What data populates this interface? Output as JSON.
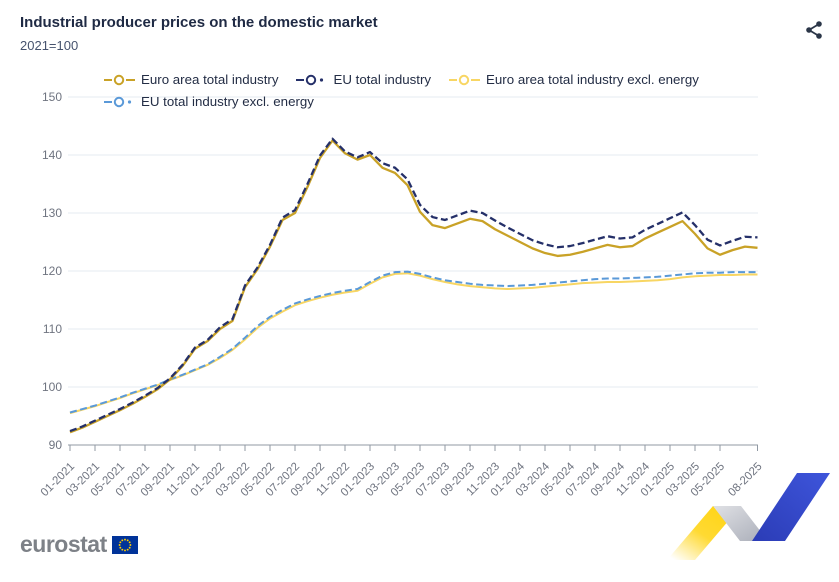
{
  "header": {
    "title": "Industrial producer prices on the domestic market",
    "subtitle": "2021=100"
  },
  "icons": {
    "share": "share-nodes-icon",
    "eu_flag": "eu-flag-icon"
  },
  "footer": {
    "logo_text": "eurostat"
  },
  "colors": {
    "title": "#1F2A44",
    "subtitle": "#46536E",
    "grid": "#E6EBF1",
    "axis": "#9099A3",
    "tick_text": "#6F7480",
    "legend_text": "#232D45",
    "share_icon": "#2B3648",
    "logo_gray": "#7D8187",
    "eu_flag_blue": "#003399",
    "eu_flag_stars": "#FFCC00",
    "ribbon_yellow": "#FFD30E",
    "ribbon_gray": "#B9BCC4",
    "ribbon_blue": "#3149CB"
  },
  "chart_data": {
    "type": "line",
    "title": "Industrial producer prices on the domestic market",
    "subtitle": "2021=100",
    "xlabel": "",
    "ylabel": "",
    "ylim": [
      90,
      150
    ],
    "y_ticks": [
      90,
      100,
      110,
      120,
      130,
      140,
      150
    ],
    "grid": true,
    "legend_position": "top",
    "x": [
      "01-2021",
      "02-2021",
      "03-2021",
      "04-2021",
      "05-2021",
      "06-2021",
      "07-2021",
      "08-2021",
      "09-2021",
      "10-2021",
      "11-2021",
      "12-2021",
      "01-2022",
      "02-2022",
      "03-2022",
      "04-2022",
      "05-2022",
      "06-2022",
      "07-2022",
      "08-2022",
      "09-2022",
      "10-2022",
      "11-2022",
      "12-2022",
      "01-2023",
      "02-2023",
      "03-2023",
      "04-2023",
      "05-2023",
      "06-2023",
      "07-2023",
      "08-2023",
      "09-2023",
      "10-2023",
      "11-2023",
      "12-2023",
      "01-2024",
      "02-2024",
      "03-2024",
      "04-2024",
      "05-2024",
      "06-2024",
      "07-2024",
      "08-2024",
      "09-2024",
      "10-2024",
      "11-2024",
      "12-2024",
      "01-2025",
      "02-2025",
      "03-2025",
      "04-2025",
      "05-2025",
      "06-2025",
      "07-2025",
      "08-2025"
    ],
    "x_tick_months": [
      0,
      2,
      4,
      6,
      8,
      10,
      12,
      14,
      16,
      18,
      20,
      22,
      24,
      26,
      28,
      30,
      32,
      34,
      36,
      38,
      40,
      42,
      44,
      46,
      48,
      50,
      52,
      55
    ],
    "x_tick_labels": [
      "01-2021",
      "03-2021",
      "05-2021",
      "07-2021",
      "09-2021",
      "11-2021",
      "01-2022",
      "03-2022",
      "05-2022",
      "07-2022",
      "09-2022",
      "11-2022",
      "01-2023",
      "03-2023",
      "05-2023",
      "07-2023",
      "09-2023",
      "11-2023",
      "01-2024",
      "03-2024",
      "05-2024",
      "07-2024",
      "09-2024",
      "11-2024",
      "01-2025",
      "03-2025",
      "05-2025",
      "08-2025"
    ],
    "series": [
      {
        "name": "Euro area total industry",
        "color": "#C9A227",
        "dash": "solid",
        "values": [
          92.2,
          93.0,
          94.0,
          95.0,
          96.0,
          97.1,
          98.3,
          99.6,
          101.3,
          103.6,
          106.6,
          107.9,
          110.0,
          111.4,
          117.2,
          120.3,
          124.2,
          128.8,
          130.0,
          134.5,
          139.5,
          142.5,
          140.3,
          139.2,
          140.0,
          137.8,
          136.9,
          134.8,
          130.2,
          127.9,
          127.4,
          128.2,
          129.0,
          128.6,
          127.2,
          126.1,
          125.0,
          123.9,
          123.1,
          122.6,
          122.8,
          123.3,
          123.9,
          124.5,
          124.1,
          124.3,
          125.6,
          126.6,
          127.6,
          128.6,
          126.4,
          123.9,
          122.8,
          123.6,
          124.2,
          124.0
        ]
      },
      {
        "name": "EU total industry",
        "color": "#253069",
        "dash": "dashed",
        "values": [
          92.4,
          93.2,
          94.2,
          95.2,
          96.2,
          97.3,
          98.5,
          99.8,
          101.5,
          103.8,
          106.8,
          108.1,
          110.3,
          111.7,
          117.5,
          120.6,
          124.5,
          129.2,
          130.5,
          135.0,
          139.9,
          142.8,
          140.6,
          139.6,
          140.5,
          138.6,
          137.8,
          135.8,
          131.4,
          129.3,
          128.8,
          129.6,
          130.4,
          130.0,
          128.7,
          127.5,
          126.4,
          125.3,
          124.6,
          124.1,
          124.3,
          124.8,
          125.4,
          126.0,
          125.6,
          125.8,
          127.1,
          128.1,
          129.1,
          130.1,
          127.9,
          125.4,
          124.4,
          125.2,
          125.9,
          125.8
        ]
      },
      {
        "name": "Euro area total industry excl. energy",
        "color": "#F8D663",
        "dash": "solid",
        "values": [
          95.5,
          96.1,
          96.7,
          97.4,
          98.1,
          98.9,
          99.6,
          100.3,
          101.2,
          102.0,
          102.9,
          103.8,
          105.0,
          106.4,
          108.2,
          110.2,
          111.8,
          113.0,
          114.1,
          114.8,
          115.4,
          115.9,
          116.3,
          116.6,
          117.8,
          118.9,
          119.5,
          119.6,
          119.2,
          118.6,
          118.1,
          117.7,
          117.4,
          117.2,
          117.0,
          116.9,
          117.0,
          117.1,
          117.3,
          117.5,
          117.7,
          117.9,
          118.0,
          118.1,
          118.1,
          118.2,
          118.3,
          118.4,
          118.6,
          118.9,
          119.1,
          119.2,
          119.3,
          119.3,
          119.4,
          119.4
        ]
      },
      {
        "name": "EU total industry excl. energy",
        "color": "#5A99D8",
        "dash": "dashed",
        "values": [
          95.6,
          96.2,
          96.8,
          97.5,
          98.2,
          99.0,
          99.7,
          100.4,
          101.3,
          102.1,
          103.0,
          103.9,
          105.2,
          106.6,
          108.5,
          110.5,
          112.1,
          113.3,
          114.4,
          115.1,
          115.7,
          116.2,
          116.6,
          116.9,
          118.1,
          119.2,
          119.8,
          119.9,
          119.5,
          118.9,
          118.4,
          118.1,
          117.8,
          117.6,
          117.5,
          117.4,
          117.5,
          117.6,
          117.8,
          118.0,
          118.2,
          118.4,
          118.6,
          118.7,
          118.7,
          118.8,
          118.9,
          119.0,
          119.2,
          119.4,
          119.6,
          119.7,
          119.7,
          119.8,
          119.8,
          119.8
        ]
      }
    ]
  }
}
